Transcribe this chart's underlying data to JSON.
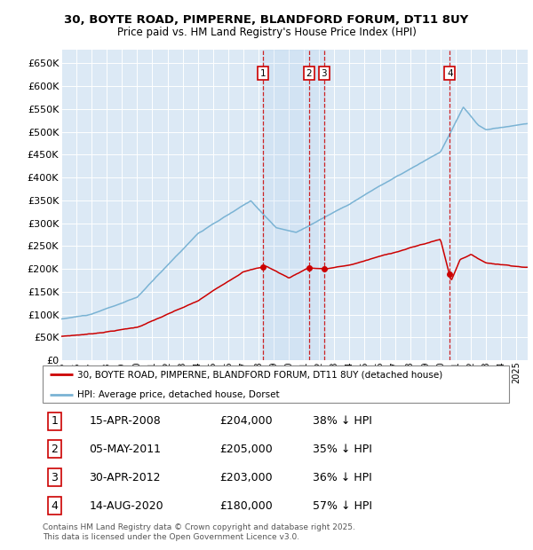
{
  "title": "30, BOYTE ROAD, PIMPERNE, BLANDFORD FORUM, DT11 8UY",
  "subtitle": "Price paid vs. HM Land Registry's House Price Index (HPI)",
  "legend_line1": "30, BOYTE ROAD, PIMPERNE, BLANDFORD FORUM, DT11 8UY (detached house)",
  "legend_line2": "HPI: Average price, detached house, Dorset",
  "hpi_color": "#7ab3d4",
  "price_color": "#cc0000",
  "dashed_color": "#cc0000",
  "background_chart": "#dce9f5",
  "footer": "Contains HM Land Registry data © Crown copyright and database right 2025.\nThis data is licensed under the Open Government Licence v3.0.",
  "ylim": [
    0,
    680000
  ],
  "yticks": [
    0,
    50000,
    100000,
    150000,
    200000,
    250000,
    300000,
    350000,
    400000,
    450000,
    500000,
    550000,
    600000,
    650000
  ],
  "xlim_start": 1995.0,
  "xlim_end": 2025.75,
  "sales": [
    {
      "num": 1,
      "date": "15-APR-2008",
      "price": 204000,
      "year": 2008.29,
      "hpi_pct": "38%",
      "label": "1"
    },
    {
      "num": 2,
      "date": "05-MAY-2011",
      "price": 205000,
      "year": 2011.34,
      "hpi_pct": "35%",
      "label": "2"
    },
    {
      "num": 3,
      "date": "30-APR-2012",
      "price": 203000,
      "year": 2012.33,
      "hpi_pct": "36%",
      "label": "3"
    },
    {
      "num": 4,
      "date": "14-AUG-2020",
      "price": 180000,
      "year": 2020.62,
      "hpi_pct": "57%",
      "label": "4"
    }
  ],
  "table_rows": [
    {
      "num": "1",
      "date": "15-APR-2008",
      "price": "£204,000",
      "pct": "38% ↓ HPI"
    },
    {
      "num": "2",
      "date": "05-MAY-2011",
      "price": "£205,000",
      "pct": "35% ↓ HPI"
    },
    {
      "num": "3",
      "date": "30-APR-2012",
      "price": "£203,000",
      "pct": "36% ↓ HPI"
    },
    {
      "num": "4",
      "date": "14-AUG-2020",
      "price": "£180,000",
      "pct": "57% ↓ HPI"
    }
  ]
}
